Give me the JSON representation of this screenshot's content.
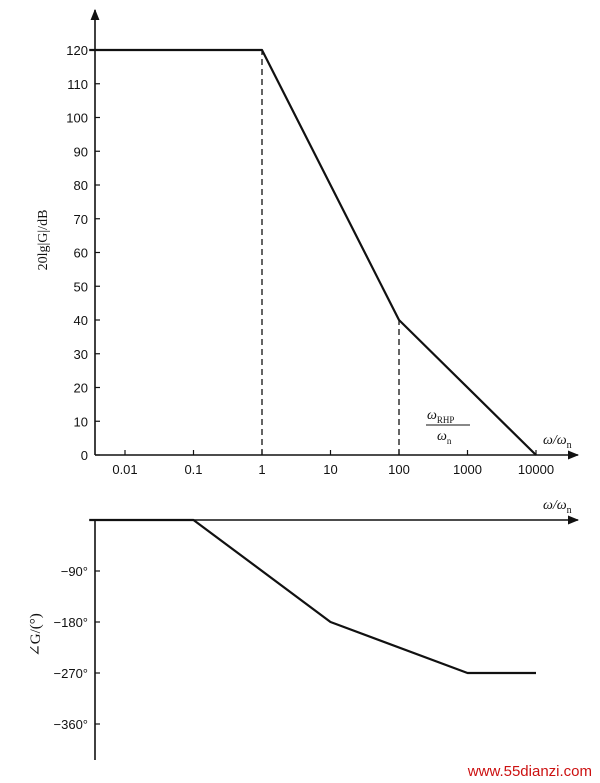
{
  "chart_data": [
    {
      "type": "line",
      "xscale": "log",
      "xlabel": "ω/ωn",
      "ylabel": "20lg|G|/dB",
      "x_ticks": [
        0.01,
        0.1,
        1,
        10,
        100,
        1000,
        10000
      ],
      "x_tick_labels": [
        "0.01",
        "0.1",
        "1",
        "10",
        "100",
        "1000",
        "10000"
      ],
      "y_ticks": [
        0,
        10,
        20,
        30,
        40,
        50,
        60,
        70,
        80,
        90,
        100,
        110,
        120
      ],
      "y_tick_labels": [
        "0",
        "10",
        "20",
        "30",
        "40",
        "50",
        "60",
        "70",
        "80",
        "90",
        "100",
        "110",
        "120"
      ],
      "xlim": [
        0.003,
        100000
      ],
      "ylim": [
        0,
        130
      ],
      "series": [
        {
          "x": [
            0.003,
            1,
            100,
            10000
          ],
          "y": [
            120,
            120,
            40,
            0
          ]
        }
      ],
      "reference_lines": [
        {
          "x": 1,
          "y_from": 0,
          "y_to": 120,
          "style": "dashed"
        },
        {
          "x": 100,
          "y_from": 0,
          "y_to": 40,
          "style": "dashed"
        }
      ],
      "annotation": {
        "x": 100,
        "numerator": "ω",
        "numerator_sub": "RHP",
        "denominator": "ω",
        "denominator_sub": "n"
      },
      "grid": false
    },
    {
      "type": "line",
      "xscale": "log",
      "xlabel": "ω/ωn",
      "ylabel": "∠G/(°)",
      "y_ticks": [
        -90,
        -180,
        -270,
        -360
      ],
      "y_tick_labels": [
        "−90°",
        "−180°",
        "−270°",
        "−360°"
      ],
      "xlim": [
        0.003,
        100000
      ],
      "ylim": [
        -410,
        0
      ],
      "series": [
        {
          "x": [
            0.003,
            0.1,
            10,
            1000,
            10000
          ],
          "y": [
            0,
            0,
            -180,
            -270,
            -270
          ]
        }
      ],
      "grid": false
    }
  ],
  "watermark": "www.55dianzi.com"
}
